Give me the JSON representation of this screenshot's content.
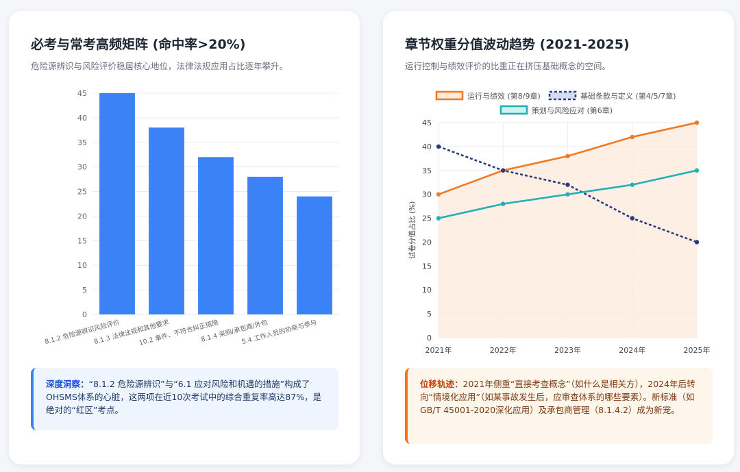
{
  "left": {
    "title": "必考与常考高频矩阵 (命中率>20%)",
    "subtitle": "危险源辨识与风险评价稳居核心地位，法律法规应用占比逐年攀升。",
    "note_label": "深度洞察：",
    "note_text": "“8.1.2 危险源辨识”与“6.1 应对风险和机遇的措施”构成了OHSMS体系的心脏，这两项在近10次考试中的综合重复率高达87%，是绝对的“红区”考点。"
  },
  "right": {
    "title": "章节权重分值波动趋势 (2021-2025)",
    "subtitle": "运行控制与绩效评价的比重正在挤压基础概念的空间。",
    "note_label": "位移轨迹：",
    "note_text": "2021年侧重“直接考查概念”（如什么是相关方），2024年后转向“情境化应用”（如某事故发生后，应审查体系的哪些要素）。新标准（如GB/T 45001-2020深化应用）及承包商管理（8.1.4.2）成为新宠。"
  },
  "chart_data": [
    {
      "type": "bar",
      "categories": [
        "8.1.2 危险源辨识风险评价",
        "8.1.3 法律法规和其他要求",
        "10.2 事件、不符合纠正措施",
        "8.1.4 采购/承包商/外包",
        "5.4 工作人员的协商与参与"
      ],
      "values": [
        45,
        38,
        32,
        28,
        24
      ],
      "ylim": [
        0,
        45
      ],
      "yticks": [
        0,
        5,
        10,
        15,
        20,
        25,
        30,
        35,
        40,
        45
      ],
      "color": "#3b82f6"
    },
    {
      "type": "line",
      "x": [
        "2021年",
        "2022年",
        "2023年",
        "2024年",
        "2025年"
      ],
      "ylabel": "试卷分值占比 (%)",
      "ylim": [
        0,
        45
      ],
      "yticks": [
        0,
        5,
        10,
        15,
        20,
        25,
        30,
        35,
        40,
        45
      ],
      "series": [
        {
          "name": "运行与绩效 (第8/9章)",
          "values": [
            30,
            35,
            38,
            42,
            45
          ],
          "color": "#f07a22",
          "fill": "#fdebdc",
          "dashed": false
        },
        {
          "name": "基础条款与定义 (第4/5/7章)",
          "values": [
            40,
            35,
            32,
            25,
            20
          ],
          "color": "#2b3a7a",
          "fill": "#d6dcef",
          "dashed": true
        },
        {
          "name": "策划与风险应对 (第6章)",
          "values": [
            25,
            28,
            30,
            32,
            35
          ],
          "color": "#22b0b8",
          "fill": "#d4f1f2",
          "dashed": false
        }
      ]
    }
  ]
}
